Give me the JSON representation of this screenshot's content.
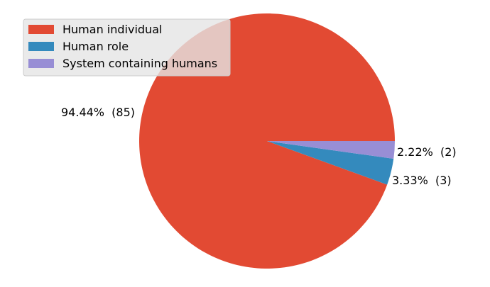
{
  "chart_data": {
    "type": "pie",
    "title": "",
    "start_angle_deg": 0,
    "direction": "counterclockwise",
    "slices": [
      {
        "label": "Human individual",
        "value": 85,
        "percent_label": "94.44%  (85)",
        "color": "#E24A33"
      },
      {
        "label": "Human role",
        "value": 3,
        "percent_label": "3.33%  (3)",
        "color": "#348ABD"
      },
      {
        "label": "System containing humans",
        "value": 2,
        "percent_label": "2.22%  (2)",
        "color": "#988ED5"
      }
    ],
    "legend": {
      "position": "top-left",
      "entries": [
        "Human individual",
        "Human role",
        "System containing humans"
      ]
    }
  }
}
